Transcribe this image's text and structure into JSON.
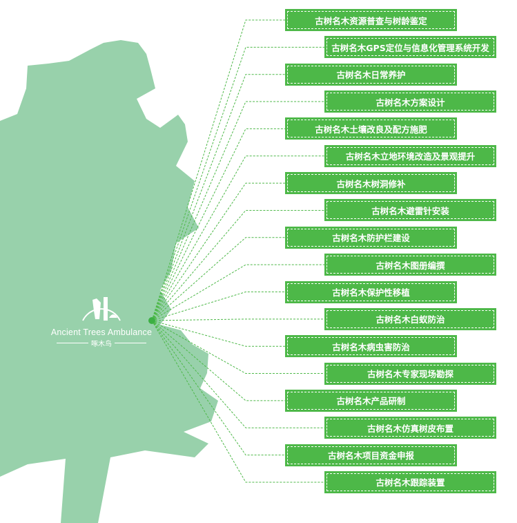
{
  "logo": {
    "english": "Ancient Trees Ambulance",
    "chinese": "啄木鸟"
  },
  "colors": {
    "tree": "#98d1ab",
    "box": "#4db848",
    "line": "#4db848"
  },
  "services": [
    "古树名木资源普查与树龄鉴定",
    "古树名木GPS定位与信息化管理系统开发",
    "古树名木日常养护",
    "古树名木方案设计",
    "古树名木土壤改良及配方施肥",
    "古树名木立地环境改造及景观提升",
    "古树名木树洞修补",
    "古树名木避雷针安装",
    "古树名木防护栏建设",
    "古树名木图册编撰",
    "古树名木保护性移植",
    "古树名木白蚁防治",
    "古树名木病虫害防治",
    "古树名木专家现场勘探",
    "古树名木产品研制",
    "古树名木仿真树皮布置",
    "古树名木项目资金申报",
    "古树名木跟踪装置"
  ]
}
